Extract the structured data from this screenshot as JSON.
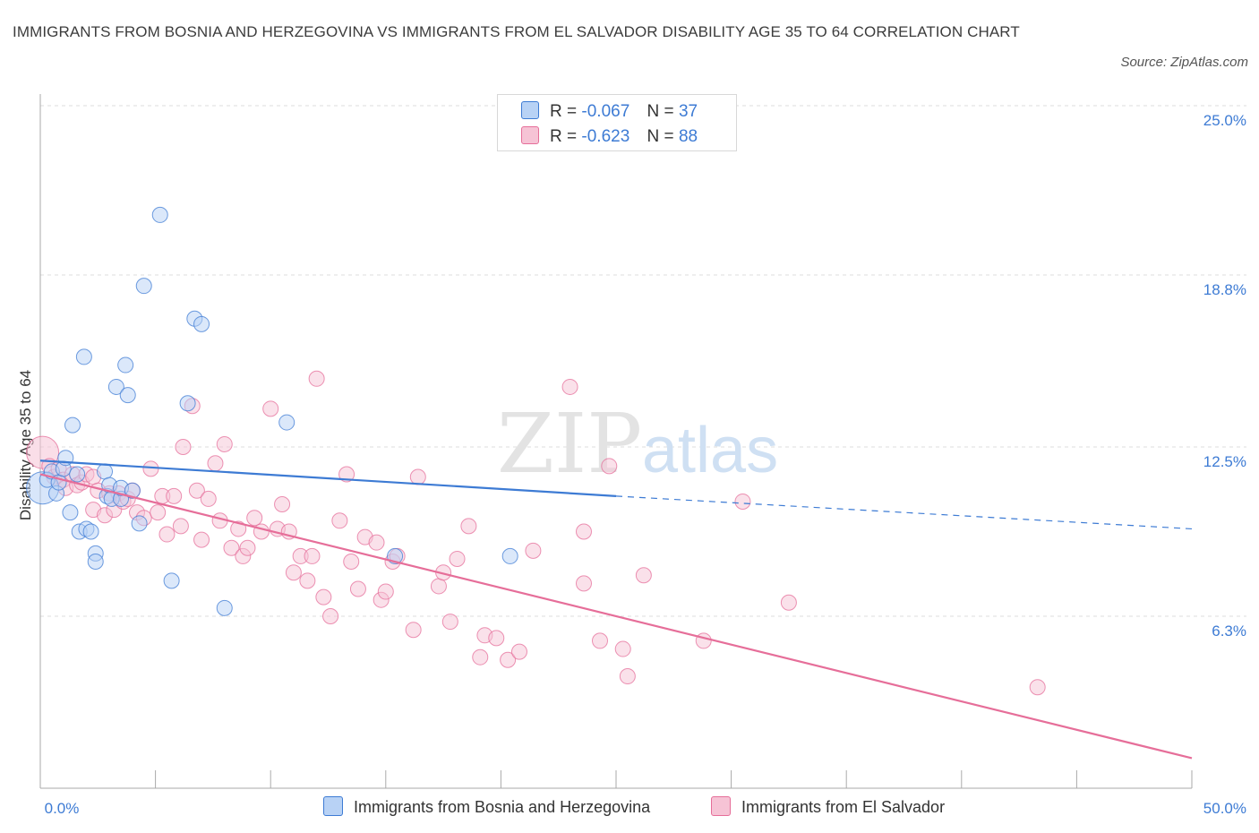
{
  "title": "IMMIGRANTS FROM BOSNIA AND HERZEGOVINA VS IMMIGRANTS FROM EL SALVADOR DISABILITY AGE 35 TO 64 CORRELATION CHART",
  "source": "Source: ZipAtlas.com",
  "watermark": {
    "zip": "ZIP",
    "atlas": "atlas"
  },
  "colors": {
    "blue": "#3d7bd4",
    "blue_fill": "#b8d2f5",
    "pink": "#e66e99",
    "pink_fill": "#f6c3d5",
    "grid": "#dddddd",
    "axis": "#aaaaaa"
  },
  "legend": {
    "rows": [
      {
        "r_label": "R =",
        "r_value": "-0.067",
        "n_label": "N =",
        "n_value": "37"
      },
      {
        "r_label": "R =",
        "r_value": "-0.623",
        "n_label": "N =",
        "n_value": "88"
      }
    ]
  },
  "bottom_legend": [
    "Immigrants from Bosnia and Herzegovina",
    "Immigrants from El Salvador"
  ],
  "chart_data": {
    "type": "scatter",
    "title": "IMMIGRANTS FROM BOSNIA AND HERZEGOVINA VS IMMIGRANTS FROM EL SALVADOR DISABILITY AGE 35 TO 64 CORRELATION CHART",
    "xlabel": "",
    "ylabel": "Disability Age 35 to 64",
    "xlim": [
      0,
      50
    ],
    "ylim": [
      0,
      25
    ],
    "x_tick_labels": [
      "0.0%",
      "50.0%"
    ],
    "y_ticks": [
      6.3,
      12.5,
      18.8,
      25.0
    ],
    "y_tick_labels": [
      "6.3%",
      "12.5%",
      "18.8%",
      "25.0%"
    ],
    "grid": true,
    "legend_position": "top-center",
    "series": [
      {
        "name": "Immigrants from Bosnia and Herzegovina",
        "color": "#3d7bd4",
        "points": [
          [
            0.1,
            11.0
          ],
          [
            0.3,
            11.3
          ],
          [
            0.5,
            11.6
          ],
          [
            0.7,
            10.8
          ],
          [
            0.8,
            11.2
          ],
          [
            1.0,
            11.7
          ],
          [
            1.1,
            12.1
          ],
          [
            1.3,
            10.1
          ],
          [
            1.4,
            13.3
          ],
          [
            1.6,
            11.5
          ],
          [
            1.7,
            9.4
          ],
          [
            1.9,
            15.8
          ],
          [
            2.0,
            9.5
          ],
          [
            2.2,
            9.4
          ],
          [
            2.4,
            8.6
          ],
          [
            2.4,
            8.3
          ],
          [
            2.8,
            11.6
          ],
          [
            2.9,
            10.7
          ],
          [
            3.0,
            11.1
          ],
          [
            3.1,
            10.6
          ],
          [
            3.3,
            14.7
          ],
          [
            3.5,
            10.6
          ],
          [
            3.5,
            11.0
          ],
          [
            3.7,
            15.5
          ],
          [
            3.8,
            14.4
          ],
          [
            4.0,
            10.9
          ],
          [
            4.3,
            9.7
          ],
          [
            4.5,
            18.4
          ],
          [
            5.2,
            21.0
          ],
          [
            5.7,
            7.6
          ],
          [
            6.4,
            14.1
          ],
          [
            6.7,
            17.2
          ],
          [
            7.0,
            17.0
          ],
          [
            8.0,
            6.6
          ],
          [
            10.7,
            13.4
          ],
          [
            15.4,
            8.5
          ],
          [
            20.4,
            8.5
          ]
        ],
        "trend": {
          "x": [
            0,
            25,
            50
          ],
          "y": [
            12.0,
            10.7,
            9.5
          ],
          "solid_until_x": 25
        }
      },
      {
        "name": "Immigrants from El Salvador",
        "color": "#e66e99",
        "points": [
          [
            0.1,
            12.3
          ],
          [
            0.4,
            11.8
          ],
          [
            0.6,
            11.4
          ],
          [
            0.8,
            11.7
          ],
          [
            1.0,
            11.3
          ],
          [
            1.1,
            11.0
          ],
          [
            1.4,
            11.5
          ],
          [
            1.6,
            11.1
          ],
          [
            1.8,
            11.2
          ],
          [
            2.0,
            11.5
          ],
          [
            2.3,
            11.4
          ],
          [
            2.3,
            10.2
          ],
          [
            2.5,
            10.9
          ],
          [
            2.8,
            10.0
          ],
          [
            3.0,
            10.8
          ],
          [
            3.2,
            10.2
          ],
          [
            3.4,
            10.8
          ],
          [
            3.6,
            10.5
          ],
          [
            3.8,
            10.6
          ],
          [
            4.0,
            10.9
          ],
          [
            4.2,
            10.1
          ],
          [
            4.5,
            9.9
          ],
          [
            4.8,
            11.7
          ],
          [
            5.1,
            10.1
          ],
          [
            5.3,
            10.7
          ],
          [
            5.5,
            9.3
          ],
          [
            5.8,
            10.7
          ],
          [
            6.1,
            9.6
          ],
          [
            6.2,
            12.5
          ],
          [
            6.6,
            14.0
          ],
          [
            6.8,
            10.9
          ],
          [
            7.0,
            9.1
          ],
          [
            7.3,
            10.6
          ],
          [
            7.6,
            11.9
          ],
          [
            7.8,
            9.8
          ],
          [
            8.0,
            12.6
          ],
          [
            8.3,
            8.8
          ],
          [
            8.6,
            9.5
          ],
          [
            8.8,
            8.5
          ],
          [
            9.0,
            8.8
          ],
          [
            9.3,
            9.9
          ],
          [
            9.6,
            9.4
          ],
          [
            10.0,
            13.9
          ],
          [
            10.3,
            9.5
          ],
          [
            10.5,
            10.4
          ],
          [
            10.8,
            9.4
          ],
          [
            11.0,
            7.9
          ],
          [
            11.3,
            8.5
          ],
          [
            11.6,
            7.6
          ],
          [
            11.8,
            8.5
          ],
          [
            12.0,
            15.0
          ],
          [
            12.3,
            7.0
          ],
          [
            12.6,
            6.3
          ],
          [
            13.0,
            9.8
          ],
          [
            13.3,
            11.5
          ],
          [
            13.5,
            8.3
          ],
          [
            13.8,
            7.3
          ],
          [
            14.1,
            9.2
          ],
          [
            14.6,
            9.0
          ],
          [
            14.8,
            6.9
          ],
          [
            15.0,
            7.2
          ],
          [
            15.3,
            8.3
          ],
          [
            15.5,
            8.5
          ],
          [
            16.2,
            5.8
          ],
          [
            16.4,
            11.4
          ],
          [
            17.3,
            7.4
          ],
          [
            17.5,
            7.9
          ],
          [
            17.8,
            6.1
          ],
          [
            18.1,
            8.4
          ],
          [
            18.6,
            9.6
          ],
          [
            19.1,
            4.8
          ],
          [
            19.3,
            5.6
          ],
          [
            19.8,
            5.5
          ],
          [
            20.3,
            4.7
          ],
          [
            20.8,
            5.0
          ],
          [
            21.4,
            8.7
          ],
          [
            23.0,
            14.7
          ],
          [
            23.6,
            7.5
          ],
          [
            23.6,
            9.4
          ],
          [
            24.3,
            5.4
          ],
          [
            24.7,
            11.8
          ],
          [
            25.3,
            5.1
          ],
          [
            25.5,
            4.1
          ],
          [
            26.2,
            7.8
          ],
          [
            28.8,
            5.4
          ],
          [
            30.5,
            10.5
          ],
          [
            32.5,
            6.8
          ],
          [
            43.3,
            3.7
          ]
        ],
        "trend": {
          "x": [
            0,
            50
          ],
          "y": [
            11.5,
            1.1
          ],
          "solid_until_x": 50
        }
      }
    ]
  }
}
